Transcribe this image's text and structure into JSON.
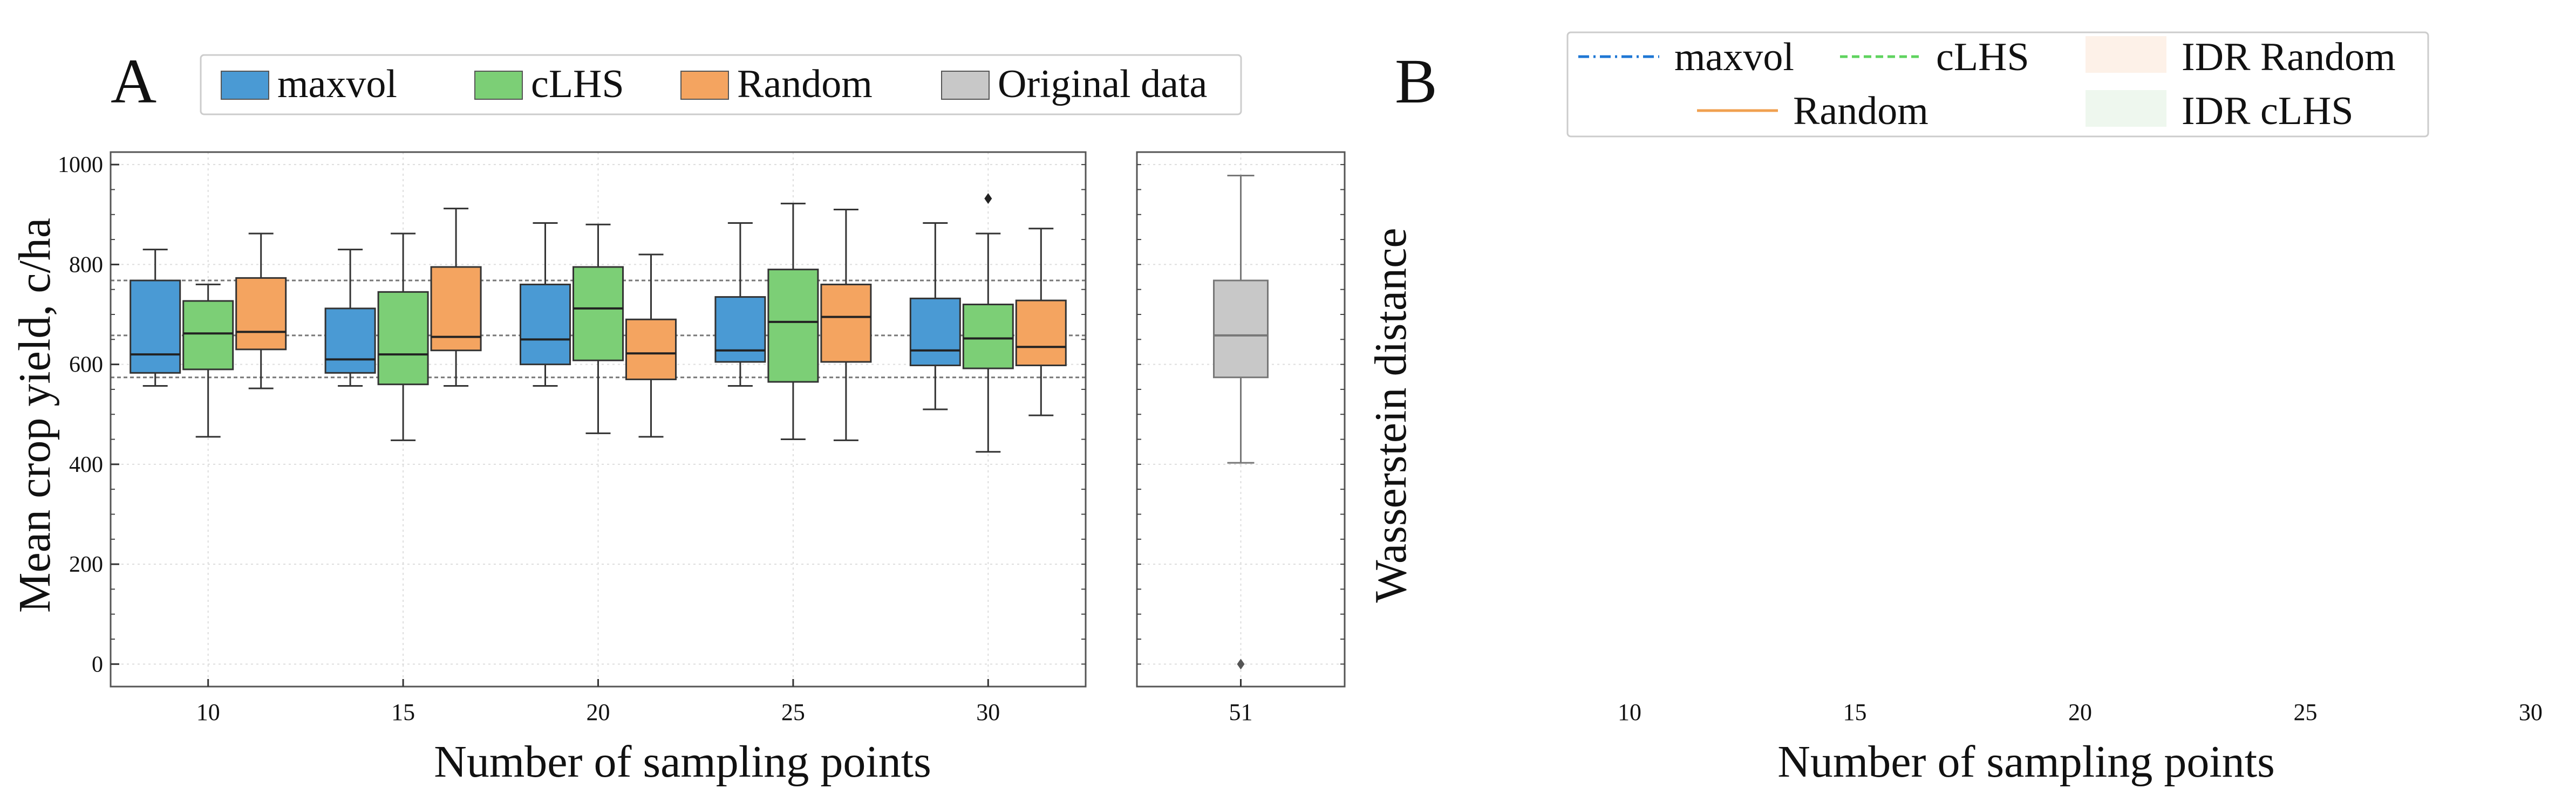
{
  "panel_labels": {
    "a": "A",
    "b": "B"
  },
  "legend_a": [
    {
      "label": "maxvol",
      "color": "#4a9ad4"
    },
    {
      "label": "cLHS",
      "color": "#7ccf76"
    },
    {
      "label": "Random",
      "color": "#f4a460"
    },
    {
      "label": "Original data",
      "color": "#c8c8c8"
    }
  ],
  "legend_b": [
    {
      "label": "maxvol",
      "style": "dashdot",
      "color": "#1f77d4"
    },
    {
      "label": "cLHS",
      "style": "dashed",
      "color": "#5fd35f"
    },
    {
      "label": "IDR Random",
      "style": "fill",
      "color": "#fdf1e8"
    },
    {
      "label": "Random",
      "style": "solid",
      "color": "#f0a050"
    },
    {
      "label": "IDR cLHS",
      "style": "fill",
      "color": "#eef7ee"
    }
  ],
  "chart_data": [
    {
      "type": "box",
      "panel": "A",
      "xlabel": "Number of sampling points",
      "ylabel": "Mean crop yield, c/ha",
      "ylim": [
        -45,
        1025
      ],
      "yticks": [
        0,
        200,
        400,
        600,
        800,
        1000
      ],
      "categories": [
        "10",
        "15",
        "20",
        "25",
        "30"
      ],
      "grid": true,
      "reference_lines": [
        574,
        658,
        768
      ],
      "series": [
        {
          "name": "maxvol",
          "color": "#4a9ad4",
          "boxes": [
            {
              "min": 557,
              "q1": 583,
              "median": 620,
              "q3": 768,
              "max": 830
            },
            {
              "min": 557,
              "q1": 583,
              "median": 610,
              "q3": 712,
              "max": 830
            },
            {
              "min": 557,
              "q1": 600,
              "median": 650,
              "q3": 760,
              "max": 883
            },
            {
              "min": 557,
              "q1": 605,
              "median": 628,
              "q3": 735,
              "max": 883
            },
            {
              "min": 510,
              "q1": 598,
              "median": 628,
              "q3": 732,
              "max": 883
            }
          ]
        },
        {
          "name": "cLHS",
          "color": "#7ccf76",
          "boxes": [
            {
              "min": 455,
              "q1": 590,
              "median": 662,
              "q3": 727,
              "max": 760
            },
            {
              "min": 448,
              "q1": 560,
              "median": 620,
              "q3": 745,
              "max": 862
            },
            {
              "min": 462,
              "q1": 608,
              "median": 712,
              "q3": 795,
              "max": 880
            },
            {
              "min": 450,
              "q1": 565,
              "median": 685,
              "q3": 790,
              "max": 922
            },
            {
              "min": 425,
              "q1": 592,
              "median": 652,
              "q3": 720,
              "max": 862,
              "outliers": [
                932
              ]
            }
          ]
        },
        {
          "name": "Random",
          "color": "#f4a460",
          "boxes": [
            {
              "min": 552,
              "q1": 630,
              "median": 665,
              "q3": 773,
              "max": 862
            },
            {
              "min": 557,
              "q1": 628,
              "median": 655,
              "q3": 795,
              "max": 912
            },
            {
              "min": 455,
              "q1": 570,
              "median": 622,
              "q3": 690,
              "max": 820
            },
            {
              "min": 448,
              "q1": 605,
              "median": 695,
              "q3": 760,
              "max": 910
            },
            {
              "min": 498,
              "q1": 598,
              "median": 635,
              "q3": 728,
              "max": 872
            }
          ]
        }
      ]
    },
    {
      "type": "box",
      "panel": "A-right",
      "categories": [
        "51"
      ],
      "ylim": [
        -45,
        1025
      ],
      "grid": true,
      "series": [
        {
          "name": "Original data",
          "color": "#c8c8c8",
          "boxes": [
            {
              "min": 403,
              "q1": 574,
              "median": 658,
              "q3": 768,
              "max": 978,
              "outliers": [
                0
              ]
            }
          ]
        }
      ]
    },
    {
      "type": "line",
      "panel": "B",
      "xlabel": "Number of sampling points",
      "ylabel": "Wasserstein distance",
      "xticks": [
        "10",
        "15",
        "20",
        "25",
        "30"
      ],
      "xlim": [
        10,
        30
      ],
      "series": []
    }
  ]
}
